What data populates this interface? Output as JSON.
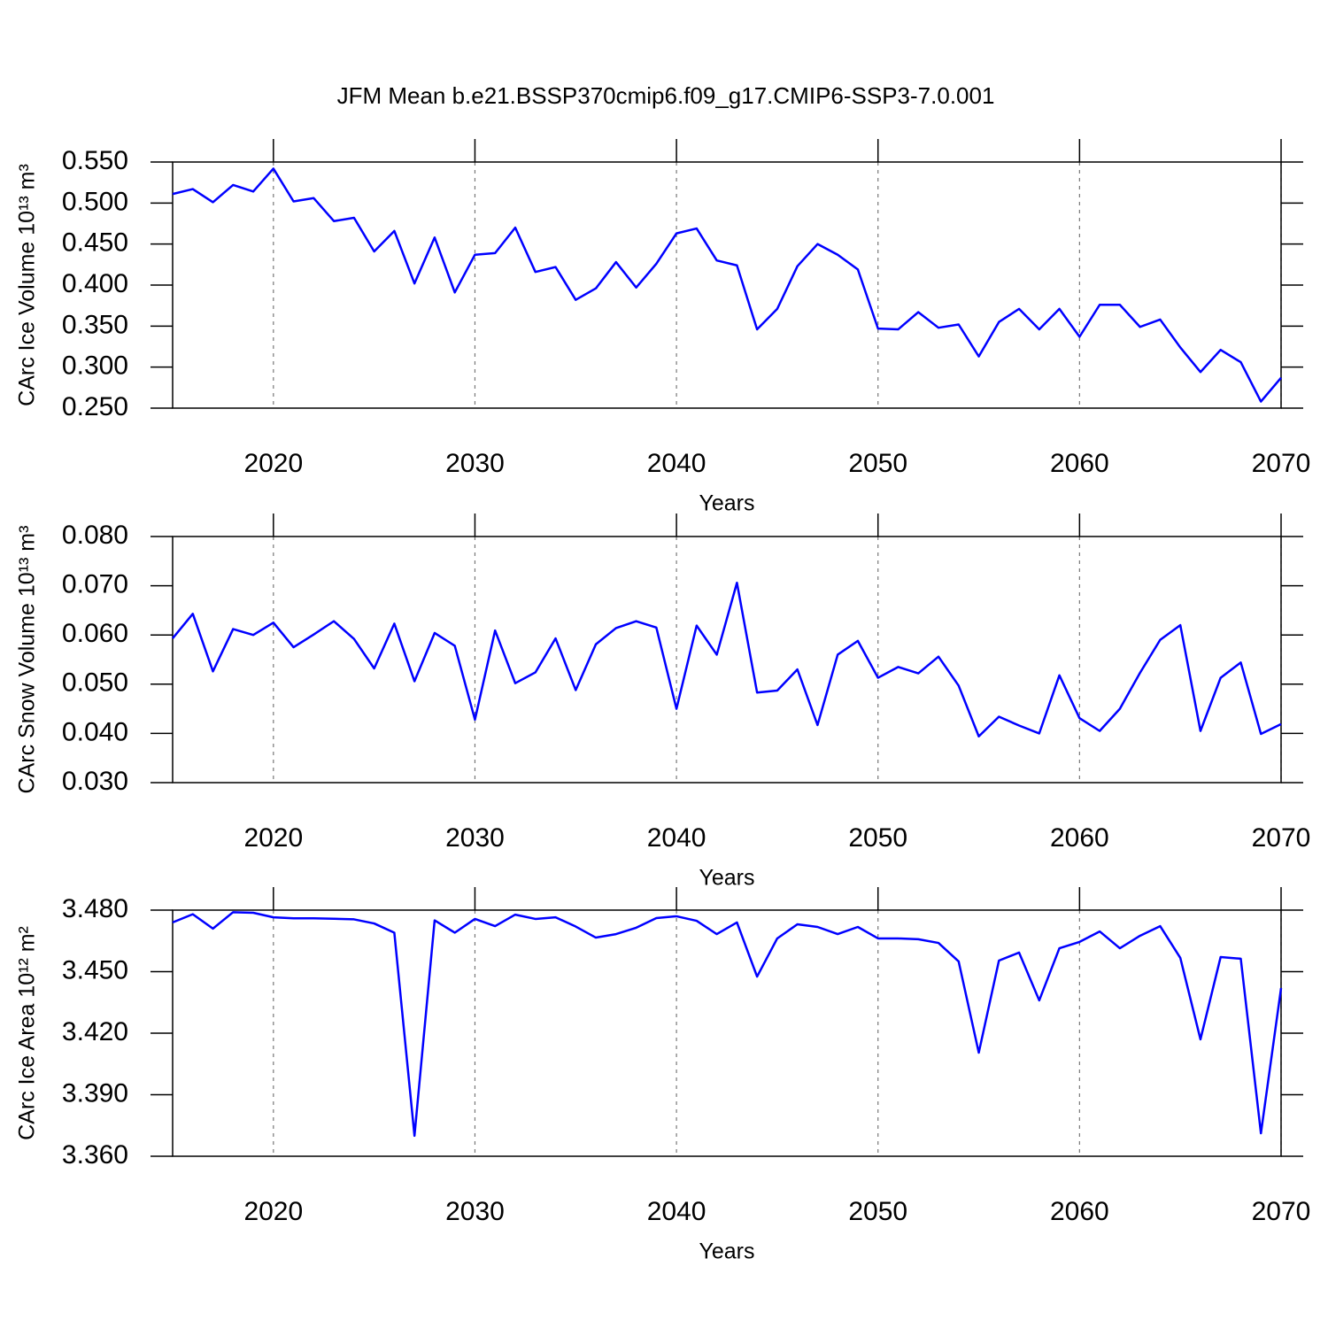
{
  "chart_data": [
    {
      "type": "line",
      "title": "JFM Mean b.e21.BSSP370cmip6.f09_g17.CMIP6-SSP3-7.0.001",
      "xlabel": "Years",
      "ylabel": "CArc Ice Volume 10¹³ m³",
      "color": "#0000ff",
      "grid": true,
      "xlim": [
        2015,
        2070
      ],
      "xticks": [
        2020,
        2030,
        2040,
        2050,
        2060,
        2070
      ],
      "ylim": [
        0.25,
        0.55
      ],
      "yticks": [
        {
          "value": 0.25,
          "label": "0.250"
        },
        {
          "value": 0.3,
          "label": "0.300"
        },
        {
          "value": 0.35,
          "label": "0.350"
        },
        {
          "value": 0.4,
          "label": "0.400"
        },
        {
          "value": 0.45,
          "label": "0.450"
        },
        {
          "value": 0.5,
          "label": "0.500"
        },
        {
          "value": 0.55,
          "label": "0.550"
        }
      ],
      "x": [
        2015,
        2016,
        2017,
        2018,
        2019,
        2020,
        2021,
        2022,
        2023,
        2024,
        2025,
        2026,
        2027,
        2028,
        2029,
        2030,
        2031,
        2032,
        2033,
        2034,
        2035,
        2036,
        2037,
        2038,
        2039,
        2040,
        2041,
        2042,
        2043,
        2044,
        2045,
        2046,
        2047,
        2048,
        2049,
        2050,
        2051,
        2052,
        2053,
        2054,
        2055,
        2056,
        2057,
        2058,
        2059,
        2060,
        2061,
        2062,
        2063,
        2064,
        2065,
        2066,
        2067,
        2068,
        2069,
        2070
      ],
      "values": [
        0.511,
        0.517,
        0.501,
        0.522,
        0.514,
        0.542,
        0.502,
        0.506,
        0.478,
        0.482,
        0.441,
        0.466,
        0.402,
        0.458,
        0.391,
        0.437,
        0.439,
        0.47,
        0.416,
        0.422,
        0.382,
        0.396,
        0.428,
        0.397,
        0.426,
        0.463,
        0.469,
        0.43,
        0.424,
        0.346,
        0.371,
        0.423,
        0.45,
        0.437,
        0.419,
        0.347,
        0.346,
        0.367,
        0.348,
        0.352,
        0.313,
        0.355,
        0.371,
        0.346,
        0.371,
        0.337,
        0.376,
        0.376,
        0.349,
        0.358,
        0.324,
        0.294,
        0.321,
        0.306,
        0.258,
        0.287
      ]
    },
    {
      "type": "line",
      "xlabel": "Years",
      "ylabel": "CArc Snow Volume 10¹³ m³",
      "color": "#0000ff",
      "grid": true,
      "xlim": [
        2015,
        2070
      ],
      "xticks": [
        2020,
        2030,
        2040,
        2050,
        2060,
        2070
      ],
      "ylim": [
        0.03,
        0.08
      ],
      "yticks": [
        {
          "value": 0.03,
          "label": "0.030"
        },
        {
          "value": 0.04,
          "label": "0.040"
        },
        {
          "value": 0.05,
          "label": "0.050"
        },
        {
          "value": 0.06,
          "label": "0.060"
        },
        {
          "value": 0.07,
          "label": "0.070"
        },
        {
          "value": 0.08,
          "label": "0.080"
        }
      ],
      "x": [
        2015,
        2016,
        2017,
        2018,
        2019,
        2020,
        2021,
        2022,
        2023,
        2024,
        2025,
        2026,
        2027,
        2028,
        2029,
        2030,
        2031,
        2032,
        2033,
        2034,
        2035,
        2036,
        2037,
        2038,
        2039,
        2040,
        2041,
        2042,
        2043,
        2044,
        2045,
        2046,
        2047,
        2048,
        2049,
        2050,
        2051,
        2052,
        2053,
        2054,
        2055,
        2056,
        2057,
        2058,
        2059,
        2060,
        2061,
        2062,
        2063,
        2064,
        2065,
        2066,
        2067,
        2068,
        2069,
        2070
      ],
      "values": [
        0.0593,
        0.0643,
        0.0526,
        0.0612,
        0.06,
        0.0625,
        0.0575,
        0.0601,
        0.0628,
        0.0592,
        0.0532,
        0.0623,
        0.0506,
        0.0604,
        0.0578,
        0.0428,
        0.0609,
        0.0502,
        0.0524,
        0.0593,
        0.0488,
        0.0581,
        0.0614,
        0.0628,
        0.0615,
        0.045,
        0.0619,
        0.056,
        0.0706,
        0.0483,
        0.0487,
        0.053,
        0.0417,
        0.056,
        0.0588,
        0.0513,
        0.0535,
        0.0522,
        0.0556,
        0.0497,
        0.0394,
        0.0434,
        0.0416,
        0.04,
        0.0518,
        0.0431,
        0.0405,
        0.045,
        0.0523,
        0.059,
        0.062,
        0.0405,
        0.0513,
        0.0544,
        0.0399,
        0.0419
      ]
    },
    {
      "type": "line",
      "xlabel": "Years",
      "ylabel": "CArc Ice Area 10¹² m²",
      "color": "#0000ff",
      "grid": true,
      "xlim": [
        2015,
        2070
      ],
      "xticks": [
        2020,
        2030,
        2040,
        2050,
        2060,
        2070
      ],
      "ylim": [
        3.36,
        3.48
      ],
      "yticks": [
        {
          "value": 3.36,
          "label": "3.360"
        },
        {
          "value": 3.39,
          "label": "3.390"
        },
        {
          "value": 3.42,
          "label": "3.420"
        },
        {
          "value": 3.45,
          "label": "3.450"
        },
        {
          "value": 3.48,
          "label": "3.480"
        }
      ],
      "x": [
        2015,
        2016,
        2017,
        2018,
        2019,
        2020,
        2021,
        2022,
        2023,
        2024,
        2025,
        2026,
        2027,
        2028,
        2029,
        2030,
        2031,
        2032,
        2033,
        2034,
        2035,
        2036,
        2037,
        2038,
        2039,
        2040,
        2041,
        2042,
        2043,
        2044,
        2045,
        2046,
        2047,
        2048,
        2049,
        2050,
        2051,
        2052,
        2053,
        2054,
        2055,
        2056,
        2057,
        2058,
        2059,
        2060,
        2061,
        2062,
        2063,
        2064,
        2065,
        2066,
        2067,
        2068,
        2069,
        2070
      ],
      "values": [
        3.474,
        3.478,
        3.471,
        3.479,
        3.4787,
        3.4765,
        3.476,
        3.476,
        3.4758,
        3.4755,
        3.4735,
        3.469,
        3.37,
        3.475,
        3.469,
        3.4757,
        3.4722,
        3.4778,
        3.4757,
        3.4765,
        3.472,
        3.4666,
        3.4683,
        3.4714,
        3.4761,
        3.477,
        3.4748,
        3.4683,
        3.474,
        3.4476,
        3.4662,
        3.4731,
        3.4718,
        3.4683,
        3.4718,
        3.4662,
        3.4662,
        3.4658,
        3.464,
        3.455,
        3.4105,
        3.4554,
        3.4593,
        3.436,
        3.4614,
        3.4645,
        3.4696,
        3.4614,
        3.4675,
        3.4722,
        3.4567,
        3.417,
        3.4571,
        3.4563,
        3.3712,
        3.442
      ]
    }
  ]
}
